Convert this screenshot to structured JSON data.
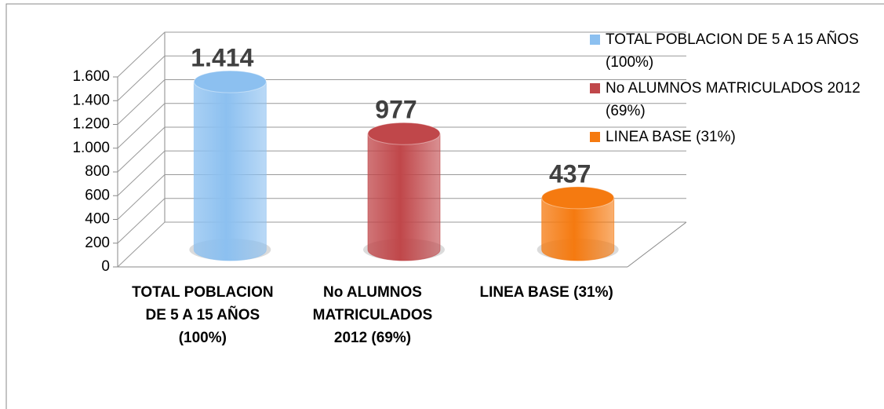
{
  "chart_data": {
    "type": "bar",
    "categories": [
      "TOTAL POBLACION DE 5 A 15 AÑOS (100%)",
      "No ALUMNOS MATRICULADOS 2012 (69%)",
      "LINEA BASE (31%)"
    ],
    "values": [
      1414,
      977,
      437
    ],
    "value_labels": [
      "1.414",
      "977",
      "437"
    ],
    "colors": [
      "#8cc0f0",
      "#c0474a",
      "#f57a10"
    ],
    "ylim": [
      0,
      1600
    ],
    "yticks": [
      0,
      200,
      400,
      600,
      800,
      {
        "value": 1000,
        "label": "1.000"
      },
      {
        "value": 1200,
        "label": "1.200"
      },
      {
        "value": 1400,
        "label": "1.400"
      },
      {
        "value": 1600,
        "label": "1.600"
      }
    ],
    "grid": true,
    "legend": "right"
  }
}
